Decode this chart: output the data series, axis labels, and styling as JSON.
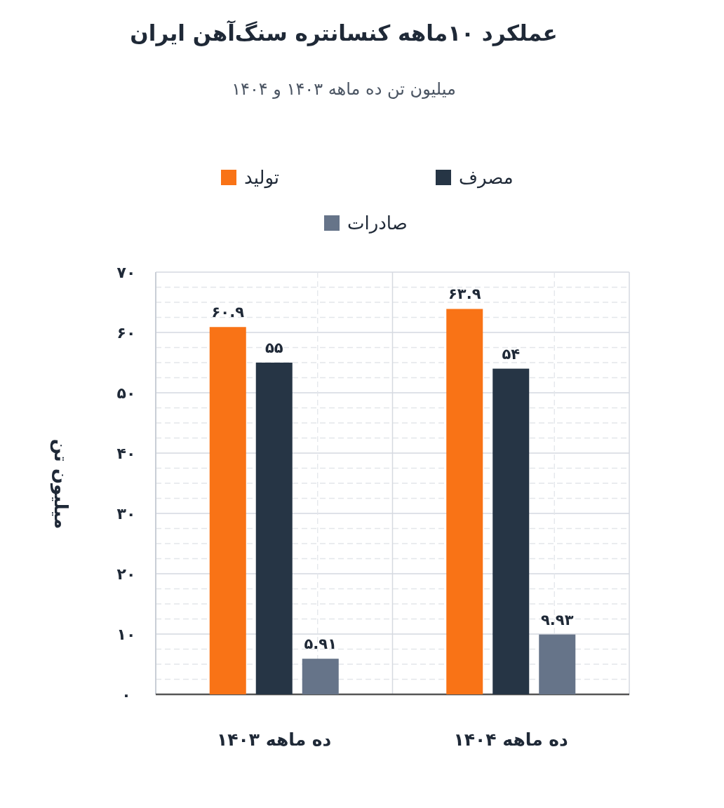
{
  "chart_data": {
    "type": "bar",
    "title": "عملکرد ۱۰ماهه کنسانتره سنگ‌آهن ایران",
    "subtitle": "میلیون تن ده ماهه ۱۴۰۳ و ۱۴۰۴",
    "ylabel": "میلیون تن",
    "categories": [
      "ده ماهه ۱۴۰۳",
      "ده ماهه ۱۴۰۴"
    ],
    "series": [
      {
        "name": "تولید",
        "color": "#f97316",
        "values": [
          60.9,
          63.9
        ],
        "value_labels": [
          "۶۰.۹",
          "۶۳.۹"
        ]
      },
      {
        "name": "مصرف",
        "color": "#263545",
        "values": [
          55,
          54
        ],
        "value_labels": [
          "۵۵",
          "۵۴"
        ]
      },
      {
        "name": "صادرات",
        "color": "#667489",
        "values": [
          5.91,
          9.93
        ],
        "value_labels": [
          "۵.۹۱",
          "۹.۹۳"
        ]
      }
    ],
    "ylim": [
      0,
      70
    ],
    "yticks": [
      {
        "value": 0,
        "label": "۰"
      },
      {
        "value": 10,
        "label": "۱۰"
      },
      {
        "value": 20,
        "label": "۲۰"
      },
      {
        "value": 30,
        "label": "۳۰"
      },
      {
        "value": 40,
        "label": "۴۰"
      },
      {
        "value": 50,
        "label": "۵۰"
      },
      {
        "value": 60,
        "label": "۶۰"
      },
      {
        "value": 70,
        "label": "۷۰"
      }
    ],
    "grid": true,
    "legend": "top"
  }
}
